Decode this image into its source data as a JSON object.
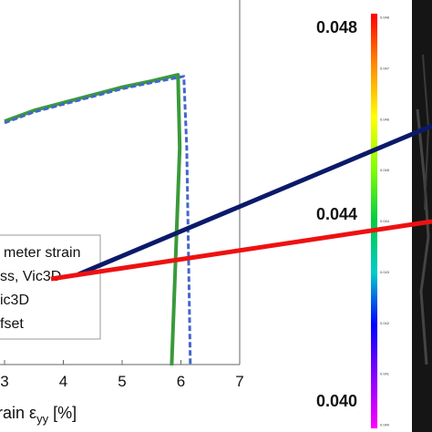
{
  "chart_data": {
    "type": "line",
    "xlabel": "strain ε_yy [%]",
    "xlabel_parts": {
      "prefix": "train ",
      "symbol": "ε",
      "subscript": "yy",
      "suffix": " [%]"
    },
    "x_ticks": [
      "3",
      "4",
      "5",
      "6",
      "7"
    ],
    "xlim": [
      3,
      7
    ],
    "legend_entries": [
      "meter strain",
      "ss, Vic3D",
      "ic3D",
      "fset"
    ],
    "series": [
      {
        "color": "#3a9a3a",
        "x": [
          3.0,
          3.5,
          4.0,
          4.5,
          5.0,
          5.5,
          5.95,
          5.98,
          5.82
        ],
        "y": [
          0.785,
          0.82,
          0.845,
          0.87,
          0.895,
          0.915,
          0.935,
          0.7,
          -0.12
        ]
      },
      {
        "color": "#4466cc",
        "dashed": true,
        "x": [
          3.0,
          3.5,
          4.0,
          4.5,
          5.0,
          5.5,
          6.05,
          6.1,
          6.17
        ],
        "y": [
          0.78,
          0.815,
          0.84,
          0.865,
          0.89,
          0.91,
          0.93,
          0.7,
          -0.12
        ]
      }
    ],
    "pointers": [
      {
        "color": "#0a1a6a"
      },
      {
        "color": "#ee1111"
      }
    ],
    "colorbar": {
      "labels": [
        "0.048",
        "0.044",
        "0.040"
      ],
      "range": [
        0.04,
        0.048
      ],
      "colors": [
        "#ff0000",
        "#ff8c00",
        "#ffff00",
        "#7fff00",
        "#00cc44",
        "#00cccc",
        "#0000ff",
        "#8800ff",
        "#ff00ff"
      ],
      "small_labels": [
        "0.048",
        "0.047",
        "0.046",
        "0.045",
        "0.044",
        "0.043",
        "0.042",
        "0.041",
        "0.040"
      ]
    }
  }
}
